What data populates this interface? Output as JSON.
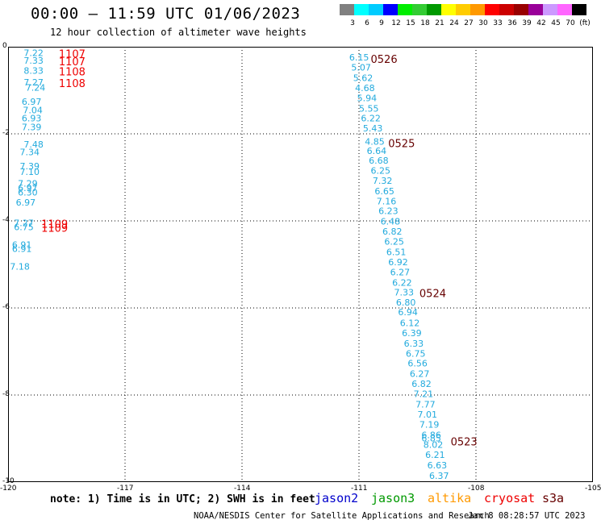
{
  "title": "00:00 – 11:59 UTC 01/06/2023",
  "subtitle": "12 hour collection of altimeter wave heights",
  "color_scale": {
    "swatches": [
      "#808080",
      "#00ffff",
      "#00ccff",
      "#0000ff",
      "#00ee00",
      "#33cc33",
      "#009900",
      "#ffff00",
      "#ffcc00",
      "#ff9900",
      "#ff0000",
      "#cc0000",
      "#990000",
      "#990099",
      "#cc99ff",
      "#ff66ff",
      "#000000"
    ],
    "labels": [
      "3",
      "6",
      "9",
      "12",
      "15",
      "18",
      "21",
      "24",
      "27",
      "30",
      "33",
      "36",
      "39",
      "42",
      "45",
      "70",
      "(ft)"
    ]
  },
  "axes": {
    "x_ticks": [
      "-120",
      "-117",
      "-114",
      "-111",
      "-108",
      "-105"
    ],
    "y_ticks": [
      "0",
      "-2",
      "-4",
      "-6",
      "-8",
      "-10"
    ]
  },
  "colors": {
    "swh": "#22aadd",
    "time_left": "#ee0000",
    "time_right": "#660000"
  },
  "swh_readings": [
    {
      "t": "7.22",
      "lon": -119.6,
      "lat": -0.05
    },
    {
      "t": "7.33",
      "lon": -119.6,
      "lat": -0.22
    },
    {
      "t": "8.33",
      "lon": -119.6,
      "lat": -0.45
    },
    {
      "t": "7.27",
      "lon": -119.6,
      "lat": -0.72
    },
    {
      "t": "7.24",
      "lon": -119.55,
      "lat": -0.84
    },
    {
      "t": "6.97",
      "lon": -119.65,
      "lat": -1.17
    },
    {
      "t": "7.04",
      "lon": -119.62,
      "lat": -1.36
    },
    {
      "t": "6.93",
      "lon": -119.65,
      "lat": -1.55
    },
    {
      "t": "7.39",
      "lon": -119.65,
      "lat": -1.75
    },
    {
      "t": "7.48",
      "lon": -119.6,
      "lat": -2.15
    },
    {
      "t": "7.34",
      "lon": -119.7,
      "lat": -2.32
    },
    {
      "t": "7.39",
      "lon": -119.7,
      "lat": -2.65
    },
    {
      "t": "7.10",
      "lon": -119.7,
      "lat": -2.78
    },
    {
      "t": "7.29",
      "lon": -119.75,
      "lat": -3.05
    },
    {
      "t": "6.97",
      "lon": -119.75,
      "lat": -3.15
    },
    {
      "t": "6.30",
      "lon": -119.75,
      "lat": -3.25
    },
    {
      "t": "6.97",
      "lon": -119.8,
      "lat": -3.48
    },
    {
      "t": "7.27",
      "lon": -119.85,
      "lat": -3.95
    },
    {
      "t": "6.75",
      "lon": -119.85,
      "lat": -4.05
    },
    {
      "t": "6.91",
      "lon": -119.9,
      "lat": -4.45
    },
    {
      "t": "6.91",
      "lon": -119.9,
      "lat": -4.55
    },
    {
      "t": "7.18",
      "lon": -119.95,
      "lat": -4.95
    },
    {
      "t": "6.15",
      "lon": -111.25,
      "lat": -0.15
    },
    {
      "t": "5.07",
      "lon": -111.2,
      "lat": -0.38
    },
    {
      "t": "5.62",
      "lon": -111.15,
      "lat": -0.62
    },
    {
      "t": "4.68",
      "lon": -111.1,
      "lat": -0.85
    },
    {
      "t": "5.94",
      "lon": -111.05,
      "lat": -1.08
    },
    {
      "t": "5.55",
      "lon": -111.0,
      "lat": -1.32
    },
    {
      "t": "6.22",
      "lon": -110.95,
      "lat": -1.55
    },
    {
      "t": "5.43",
      "lon": -110.9,
      "lat": -1.78
    },
    {
      "t": "4.85",
      "lon": -110.85,
      "lat": -2.08
    },
    {
      "t": "6.64",
      "lon": -110.8,
      "lat": -2.3
    },
    {
      "t": "6.68",
      "lon": -110.75,
      "lat": -2.52
    },
    {
      "t": "6.25",
      "lon": -110.7,
      "lat": -2.75
    },
    {
      "t": "7.32",
      "lon": -110.65,
      "lat": -2.98
    },
    {
      "t": "6.65",
      "lon": -110.6,
      "lat": -3.22
    },
    {
      "t": "7.16",
      "lon": -110.55,
      "lat": -3.45
    },
    {
      "t": "6.23",
      "lon": -110.5,
      "lat": -3.68
    },
    {
      "t": "6.48",
      "lon": -110.45,
      "lat": -3.92
    },
    {
      "t": "6.82",
      "lon": -110.4,
      "lat": -4.15
    },
    {
      "t": "6.25",
      "lon": -110.35,
      "lat": -4.38
    },
    {
      "t": "6.51",
      "lon": -110.3,
      "lat": -4.62
    },
    {
      "t": "6.92",
      "lon": -110.25,
      "lat": -4.85
    },
    {
      "t": "6.27",
      "lon": -110.2,
      "lat": -5.08
    },
    {
      "t": "6.22",
      "lon": -110.15,
      "lat": -5.32
    },
    {
      "t": "7.33",
      "lon": -110.1,
      "lat": -5.55
    },
    {
      "t": "6.80",
      "lon": -110.05,
      "lat": -5.78
    },
    {
      "t": "6.94",
      "lon": -110.0,
      "lat": -6.0
    },
    {
      "t": "6.12",
      "lon": -109.95,
      "lat": -6.25
    },
    {
      "t": "6.39",
      "lon": -109.9,
      "lat": -6.48
    },
    {
      "t": "6.33",
      "lon": -109.85,
      "lat": -6.72
    },
    {
      "t": "6.75",
      "lon": -109.8,
      "lat": -6.95
    },
    {
      "t": "6.56",
      "lon": -109.75,
      "lat": -7.18
    },
    {
      "t": "6.27",
      "lon": -109.7,
      "lat": -7.42
    },
    {
      "t": "6.82",
      "lon": -109.65,
      "lat": -7.65
    },
    {
      "t": "7.21",
      "lon": -109.6,
      "lat": -7.88
    },
    {
      "t": "7.77",
      "lon": -109.55,
      "lat": -8.12
    },
    {
      "t": "7.01",
      "lon": -109.5,
      "lat": -8.35
    },
    {
      "t": "7.19",
      "lon": -109.45,
      "lat": -8.58
    },
    {
      "t": "6.86",
      "lon": -109.4,
      "lat": -8.82
    },
    {
      "t": "6.85",
      "lon": -109.4,
      "lat": -8.9
    },
    {
      "t": "8.02",
      "lon": -109.35,
      "lat": -9.05
    },
    {
      "t": "6.21",
      "lon": -109.3,
      "lat": -9.28
    },
    {
      "t": "6.63",
      "lon": -109.25,
      "lat": -9.52
    },
    {
      "t": "6.37",
      "lon": -109.2,
      "lat": -9.76
    }
  ],
  "time_markers": [
    {
      "t": "1107",
      "lon": -118.7,
      "lat": -0.05,
      "side": "left"
    },
    {
      "t": "1107",
      "lon": -118.7,
      "lat": -0.22,
      "side": "left"
    },
    {
      "t": "1108",
      "lon": -118.7,
      "lat": -0.45,
      "side": "left"
    },
    {
      "t": "1108",
      "lon": -118.7,
      "lat": -0.72,
      "side": "left"
    },
    {
      "t": "1109",
      "lon": -119.15,
      "lat": -3.95,
      "side": "left"
    },
    {
      "t": "1109",
      "lon": -119.15,
      "lat": -4.05,
      "side": "left"
    },
    {
      "t": "0526",
      "lon": -110.7,
      "lat": -0.17,
      "side": "right"
    },
    {
      "t": "0525",
      "lon": -110.25,
      "lat": -2.1,
      "side": "right"
    },
    {
      "t": "0524",
      "lon": -109.45,
      "lat": -5.55,
      "side": "right"
    },
    {
      "t": "0523",
      "lon": -108.65,
      "lat": -8.95,
      "side": "right"
    }
  ],
  "note": "note: 1) Time is in UTC; 2) SWH is in feet",
  "satellites": [
    {
      "name": "jason2",
      "color": "#0000cc",
      "left": 390
    },
    {
      "name": "jason3",
      "color": "#009900",
      "left": 460
    },
    {
      "name": "altika",
      "color": "#ff9900",
      "left": 530
    },
    {
      "name": "cryosat",
      "color": "#ee0000",
      "left": 600
    },
    {
      "name": "s3a",
      "color": "#660000",
      "left": 672
    }
  ],
  "credit": "NOAA/NESDIS Center for Satellite Applications and Research",
  "timestamp": "Jan  8 08:28:57 UTC 2023"
}
